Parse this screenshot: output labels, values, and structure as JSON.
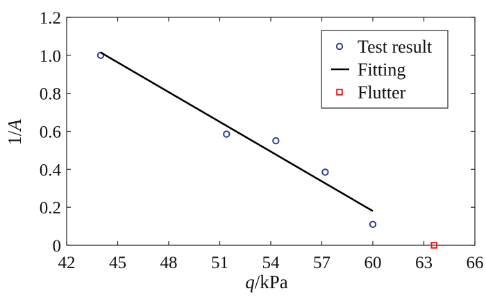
{
  "chart_data": {
    "type": "scatter",
    "xlabel": {
      "symbol": "q",
      "unit": "/kPa"
    },
    "ylabel": {
      "prefix": "1/",
      "symbol": "A"
    },
    "xlim": [
      42,
      66
    ],
    "ylim": [
      0,
      1.2
    ],
    "x_ticks": [
      "42",
      "45",
      "48",
      "51",
      "54",
      "57",
      "60",
      "63",
      "66"
    ],
    "y_ticks": [
      "0",
      "0.2",
      "0.4",
      "0.6",
      "0.8",
      "1.0",
      "1.2"
    ],
    "grid": false,
    "legend_position": "top-right",
    "series": [
      {
        "name": "Test result",
        "kind": "scatter",
        "marker": "circle",
        "color": "#2e3a9a",
        "points": [
          {
            "x": 44.0,
            "y": 1.0
          },
          {
            "x": 51.4,
            "y": 0.585
          },
          {
            "x": 54.3,
            "y": 0.55
          },
          {
            "x": 57.2,
            "y": 0.385
          },
          {
            "x": 60.0,
            "y": 0.11
          }
        ]
      },
      {
        "name": "Fitting",
        "kind": "line",
        "color": "#000000",
        "points": [
          {
            "x": 44.0,
            "y": 1.015
          },
          {
            "x": 60.0,
            "y": 0.18
          }
        ]
      },
      {
        "name": "Flutter",
        "kind": "scatter",
        "marker": "square",
        "color": "#e02020",
        "points": [
          {
            "x": 63.6,
            "y": 0.0
          }
        ]
      }
    ]
  }
}
